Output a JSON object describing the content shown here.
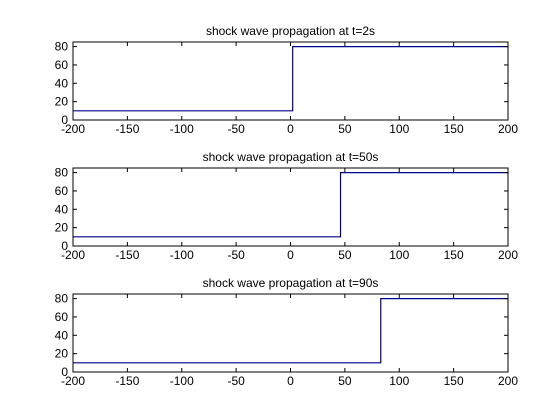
{
  "chart_data": [
    {
      "type": "line",
      "title": "shock wave propagation at t=2s",
      "xlabel": "",
      "ylabel": "",
      "xlim": [
        -200,
        200
      ],
      "ylim": [
        0,
        85
      ],
      "xticks": [
        -200,
        -150,
        -100,
        -50,
        0,
        50,
        100,
        150,
        200
      ],
      "yticks": [
        0,
        20,
        40,
        60,
        80
      ],
      "grid": false,
      "series": [
        {
          "color": "#00008b",
          "x": [
            -200,
            2,
            2,
            200
          ],
          "y": [
            10,
            10,
            80,
            80
          ]
        }
      ]
    },
    {
      "type": "line",
      "title": "shock wave propagation at t=50s",
      "xlabel": "",
      "ylabel": "",
      "xlim": [
        -200,
        200
      ],
      "ylim": [
        0,
        85
      ],
      "xticks": [
        -200,
        -150,
        -100,
        -50,
        0,
        50,
        100,
        150,
        200
      ],
      "yticks": [
        0,
        20,
        40,
        60,
        80
      ],
      "grid": false,
      "series": [
        {
          "color": "#00008b",
          "x": [
            -200,
            46,
            46,
            200
          ],
          "y": [
            10,
            10,
            80,
            80
          ]
        }
      ]
    },
    {
      "type": "line",
      "title": "shock wave propagation at t=90s",
      "xlabel": "",
      "ylabel": "",
      "xlim": [
        -200,
        200
      ],
      "ylim": [
        0,
        85
      ],
      "xticks": [
        -200,
        -150,
        -100,
        -50,
        0,
        50,
        100,
        150,
        200
      ],
      "yticks": [
        0,
        20,
        40,
        60,
        80
      ],
      "grid": false,
      "series": [
        {
          "color": "#00008b",
          "x": [
            -200,
            83,
            83,
            200
          ],
          "y": [
            10,
            10,
            80,
            80
          ]
        }
      ]
    }
  ]
}
